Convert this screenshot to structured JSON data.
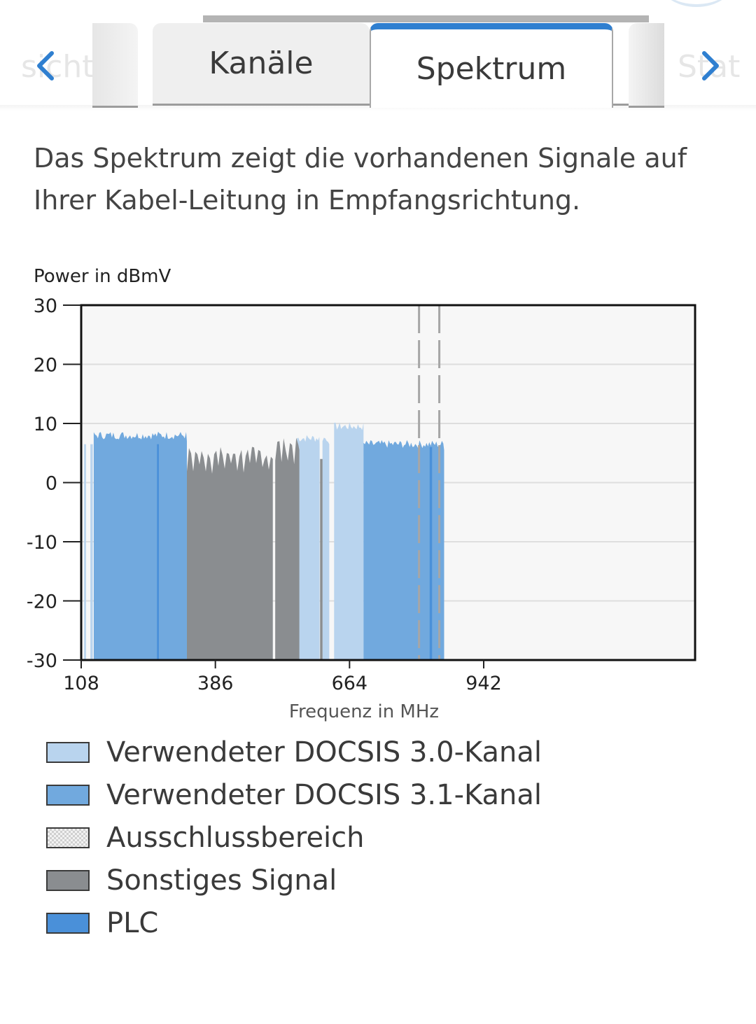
{
  "tabs": {
    "left_partial": "sicht",
    "items": [
      {
        "label": "Kanäle"
      },
      {
        "label": "Spektrum"
      }
    ],
    "right_partial": "Stat",
    "active": "Spektrum"
  },
  "description": "Das Spektrum zeigt die vorhandenen Signale auf Ihrer Kabel-Leitung in Empfangsrichtung.",
  "colors": {
    "docsis30": "#b9d4ee",
    "docsis31": "#71a9de",
    "other": "#8a8d90",
    "plc": "#4a90d9",
    "accent": "#2f7fd0"
  },
  "chart_data": {
    "type": "area",
    "ylabel": "Power in dBmV",
    "xlabel": "Frequenz in MHz",
    "ylim": [
      -30,
      30
    ],
    "xlim": [
      108,
      1380
    ],
    "yticks": [
      "30",
      "20",
      "10",
      "0",
      "-10",
      "-20",
      "-30"
    ],
    "ytick_values": [
      30,
      20,
      10,
      0,
      -10,
      -20,
      -30
    ],
    "xticks": [
      "108",
      "386",
      "664",
      "942"
    ],
    "xtick_values": [
      108,
      386,
      664,
      942
    ],
    "grid": true,
    "series": [
      {
        "name": "Verwendeter DOCSIS 3.0-Kanal",
        "kind": "docsis30",
        "segments": [
          {
            "x0": 114,
            "x1": 118,
            "y": 6.5
          },
          {
            "x0": 127,
            "x1": 132,
            "y": 6.5
          },
          {
            "x0": 555,
            "x1": 602,
            "y": 7.5
          },
          {
            "x0": 608,
            "x1": 622,
            "y": 7.5
          },
          {
            "x0": 632,
            "x1": 693,
            "y": 9.5
          }
        ]
      },
      {
        "name": "Verwendeter DOCSIS 3.1-Kanal",
        "kind": "docsis31",
        "segments": [
          {
            "x0": 134,
            "x1": 327,
            "y": 8.0
          },
          {
            "x0": 693,
            "x1": 860,
            "y": 6.5
          }
        ]
      },
      {
        "name": "Sonstiges Signal",
        "kind": "other",
        "segments": [
          {
            "x0": 327,
            "x1": 505,
            "y": 5.0
          },
          {
            "x0": 510,
            "x1": 560,
            "y": 6.5
          },
          {
            "x0": 603,
            "x1": 608,
            "y": 4.0
          }
        ]
      },
      {
        "name": "PLC",
        "kind": "plc",
        "segments": [
          {
            "x0": 265,
            "x1": 269,
            "y": 6.5
          },
          {
            "x0": 830,
            "x1": 835,
            "y": 6.0
          }
        ]
      }
    ],
    "exclusion_markers": [
      808,
      850
    ],
    "legend": [
      {
        "label": "Verwendeter DOCSIS 3.0-Kanal",
        "kind": "docsis30"
      },
      {
        "label": "Verwendeter DOCSIS 3.1-Kanal",
        "kind": "docsis31"
      },
      {
        "label": "Ausschlussbereich",
        "kind": "exclusion"
      },
      {
        "label": "Sonstiges Signal",
        "kind": "other"
      },
      {
        "label": "PLC",
        "kind": "plc"
      }
    ]
  }
}
